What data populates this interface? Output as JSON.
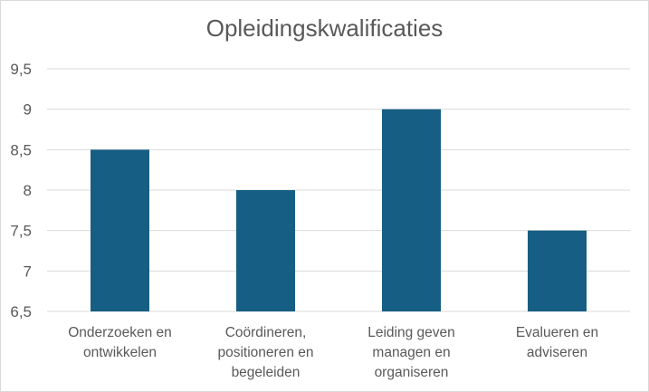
{
  "chart_data": {
    "type": "bar",
    "title": "Opleidingskwalificaties",
    "categories": [
      [
        "Onderzoeken en",
        "ontwikkelen"
      ],
      [
        "Coördineren,",
        "positioneren en",
        "begeleiden"
      ],
      [
        "Leiding geven",
        "managen en",
        "organiseren"
      ],
      [
        "Evalueren en",
        "adviseren"
      ]
    ],
    "values": [
      8.5,
      8,
      9,
      7.5
    ],
    "ylim": [
      6.5,
      9.5
    ],
    "yticks": [
      "6,5",
      "7",
      "7,5",
      "8",
      "8,5",
      "9",
      "9,5"
    ],
    "ytick_values": [
      6.5,
      7,
      7.5,
      8,
      8.5,
      9,
      9.5
    ],
    "grid": true,
    "legend": "none",
    "bar_color": "#165e83",
    "grid_color": "#d9d9d9",
    "text_color": "#595959"
  }
}
